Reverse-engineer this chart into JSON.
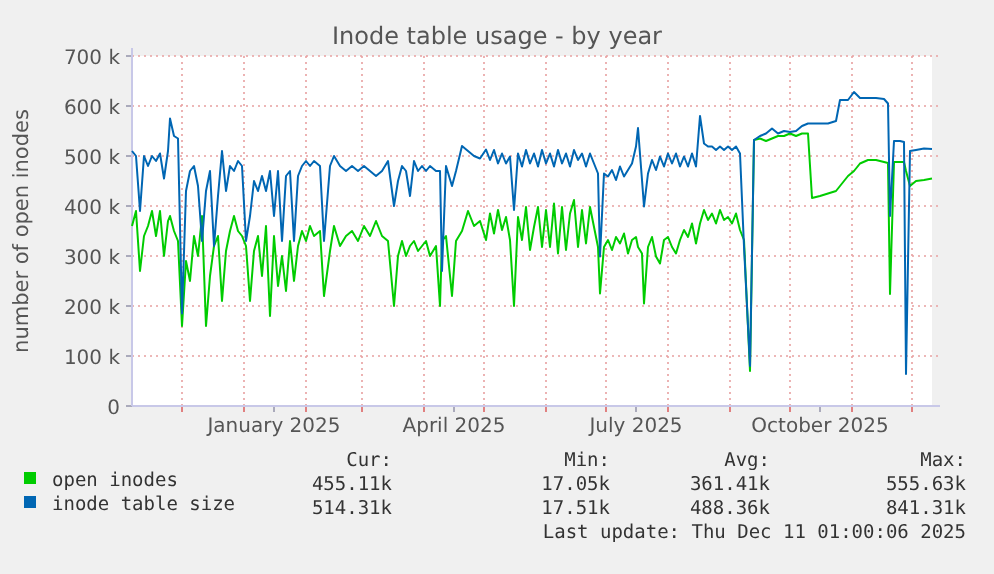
{
  "chart_data": {
    "type": "line",
    "title": "Inode table usage - by year",
    "ylabel": "number of open inodes",
    "x": [
      "2024-11-06",
      "2024-11-08",
      "2024-11-10",
      "2024-11-12",
      "2024-11-14",
      "2024-11-16",
      "2024-11-18",
      "2024-11-20",
      "2024-11-22",
      "2024-11-24",
      "2024-11-25",
      "2024-11-27",
      "2024-11-29",
      "2024-12-01",
      "2024-12-03",
      "2024-12-05",
      "2024-12-07",
      "2024-12-09",
      "2024-12-11",
      "2024-12-13",
      "2024-12-15",
      "2024-12-17",
      "2024-12-19",
      "2024-12-21",
      "2024-12-23",
      "2024-12-25",
      "2024-12-27",
      "2024-12-29",
      "2024-12-31",
      "2025-01-02",
      "2025-01-04",
      "2025-01-06",
      "2025-01-08",
      "2025-01-10",
      "2025-01-12",
      "2025-01-14",
      "2025-01-16",
      "2025-01-18",
      "2025-01-20",
      "2025-01-22",
      "2025-01-24",
      "2025-01-26",
      "2025-01-28",
      "2025-01-30",
      "2025-02-01",
      "2025-02-03",
      "2025-02-05",
      "2025-02-08",
      "2025-02-10",
      "2025-02-13",
      "2025-02-15",
      "2025-02-18",
      "2025-02-21",
      "2025-02-24",
      "2025-02-27",
      "2025-03-02",
      "2025-03-05",
      "2025-03-08",
      "2025-03-11",
      "2025-03-14",
      "2025-03-17",
      "2025-03-19",
      "2025-03-21",
      "2025-03-23",
      "2025-03-25",
      "2025-03-27",
      "2025-03-29",
      "2025-03-31",
      "2025-04-02",
      "2025-04-04",
      "2025-04-07",
      "2025-04-09",
      "2025-04-10",
      "2025-04-12",
      "2025-04-15",
      "2025-04-17",
      "2025-04-20",
      "2025-04-23",
      "2025-04-26",
      "2025-04-29",
      "2025-05-02",
      "2025-05-04",
      "2025-05-06",
      "2025-05-08",
      "2025-05-10",
      "2025-05-12",
      "2025-05-14",
      "2025-05-16",
      "2025-05-18",
      "2025-05-20",
      "2025-05-22",
      "2025-05-24",
      "2025-05-26",
      "2025-05-28",
      "2025-05-30",
      "2025-06-01",
      "2025-06-03",
      "2025-06-05",
      "2025-06-07",
      "2025-06-09",
      "2025-06-11",
      "2025-06-13",
      "2025-06-15",
      "2025-06-17",
      "2025-06-19",
      "2025-06-21",
      "2025-06-23",
      "2025-06-25",
      "2025-06-27",
      "2025-06-28",
      "2025-06-30",
      "2025-07-02",
      "2025-07-04",
      "2025-07-06",
      "2025-07-08",
      "2025-07-10",
      "2025-07-12",
      "2025-07-14",
      "2025-07-16",
      "2025-07-17",
      "2025-07-19",
      "2025-07-20",
      "2025-07-22",
      "2025-07-24",
      "2025-07-26",
      "2025-07-28",
      "2025-07-30",
      "2025-08-01",
      "2025-08-03",
      "2025-08-05",
      "2025-08-07",
      "2025-08-09",
      "2025-08-11",
      "2025-08-13",
      "2025-08-15",
      "2025-08-17",
      "2025-08-19",
      "2025-08-21",
      "2025-08-23",
      "2025-08-25",
      "2025-08-27",
      "2025-08-29",
      "2025-08-31",
      "2025-09-02",
      "2025-09-04",
      "2025-09-06",
      "2025-09-08",
      "2025-09-11",
      "2025-09-13",
      "2025-09-16",
      "2025-09-19",
      "2025-09-22",
      "2025-09-25",
      "2025-09-28",
      "2025-10-01",
      "2025-10-04",
      "2025-10-07",
      "2025-10-10",
      "2025-10-12",
      "2025-10-16",
      "2025-10-20",
      "2025-10-24",
      "2025-10-26",
      "2025-10-30",
      "2025-11-02",
      "2025-11-05",
      "2025-11-09",
      "2025-11-13",
      "2025-11-17",
      "2025-11-19",
      "2025-11-20",
      "2025-11-22",
      "2025-11-25",
      "2025-11-27",
      "2025-11-28",
      "2025-11-30",
      "2025-12-03",
      "2025-12-07",
      "2025-12-11"
    ],
    "series": [
      {
        "name": "open inodes",
        "color": "#00cc00",
        "values": [
          360000,
          390000,
          270000,
          340000,
          360000,
          390000,
          340000,
          390000,
          300000,
          370000,
          380000,
          350000,
          330000,
          160000,
          290000,
          250000,
          340000,
          300000,
          380000,
          160000,
          260000,
          320000,
          340000,
          210000,
          310000,
          350000,
          380000,
          350000,
          340000,
          320000,
          210000,
          310000,
          340000,
          260000,
          360000,
          180000,
          340000,
          240000,
          300000,
          230000,
          330000,
          250000,
          320000,
          350000,
          330000,
          360000,
          340000,
          350000,
          220000,
          310000,
          360000,
          320000,
          340000,
          350000,
          330000,
          360000,
          340000,
          370000,
          340000,
          330000,
          200000,
          300000,
          330000,
          300000,
          320000,
          330000,
          310000,
          320000,
          330000,
          300000,
          320000,
          200000,
          330000,
          340000,
          220000,
          330000,
          350000,
          390000,
          360000,
          370000,
          332000,
          385000,
          345000,
          392000,
          352000,
          378000,
          332000,
          200000,
          378000,
          332000,
          398000,
          312000,
          358000,
          398000,
          318000,
          392000,
          318000,
          405000,
          305000,
          398000,
          312000,
          385000,
          412000,
          318000,
          392000,
          325000,
          398000,
          358000,
          318000,
          225000,
          318000,
          332000,
          312000,
          338000,
          325000,
          345000,
          305000,
          332000,
          338000,
          318000,
          305000,
          205000,
          318000,
          338000,
          299000,
          285000,
          332000,
          338000,
          318000,
          305000,
          332000,
          352000,
          338000,
          365000,
          325000,
          365000,
          392000,
          372000,
          385000,
          365000,
          392000,
          372000,
          378000,
          365000,
          385000,
          352000,
          332000,
          70000,
          532000,
          535000,
          530000,
          535000,
          540000,
          540000,
          545000,
          540000,
          545000,
          545000,
          416000,
          420000,
          425000,
          430000,
          440000,
          460000,
          470000,
          485000,
          492000,
          492000,
          488000,
          486000,
          224000,
          488000,
          488000,
          488000,
          470000,
          440000,
          450000,
          452000,
          455000
        ]
      },
      {
        "name": "inode table size",
        "color": "#0066b3",
        "values": [
          510000,
          500000,
          390000,
          500000,
          480000,
          500000,
          490000,
          505000,
          455000,
          510000,
          575000,
          540000,
          535000,
          185000,
          430000,
          470000,
          480000,
          440000,
          330000,
          430000,
          470000,
          320000,
          420000,
          510000,
          430000,
          480000,
          470000,
          490000,
          480000,
          330000,
          380000,
          450000,
          430000,
          460000,
          430000,
          470000,
          380000,
          470000,
          330000,
          460000,
          470000,
          330000,
          460000,
          480000,
          490000,
          480000,
          490000,
          480000,
          330000,
          480000,
          500000,
          480000,
          470000,
          480000,
          470000,
          480000,
          470000,
          460000,
          470000,
          490000,
          400000,
          450000,
          480000,
          470000,
          420000,
          490000,
          470000,
          480000,
          470000,
          480000,
          470000,
          470000,
          270000,
          480000,
          440000,
          470000,
          520000,
          510000,
          500000,
          495000,
          513000,
          492000,
          512000,
          485000,
          505000,
          485000,
          499000,
          392000,
          505000,
          479000,
          512000,
          485000,
          505000,
          479000,
          512000,
          485000,
          505000,
          479000,
          512000,
          485000,
          505000,
          479000,
          512000,
          492000,
          505000,
          479000,
          505000,
          485000,
          465000,
          299000,
          465000,
          459000,
          472000,
          452000,
          479000,
          459000,
          472000,
          485000,
          519000,
          556000,
          452000,
          399000,
          465000,
          492000,
          472000,
          499000,
          479000,
          505000,
          485000,
          505000,
          479000,
          499000,
          479000,
          505000,
          479000,
          580000,
          525000,
          519000,
          519000,
          512000,
          519000,
          512000,
          519000,
          512000,
          519000,
          505000,
          319000,
          80000,
          532000,
          540000,
          545000,
          555000,
          545000,
          550000,
          548000,
          550000,
          560000,
          565000,
          565000,
          565000,
          565000,
          570000,
          612000,
          612000,
          628000,
          616000,
          616000,
          616000,
          614000,
          605000,
          380000,
          530000,
          530000,
          528000,
          64000,
          510000,
          512000,
          515000,
          514000
        ]
      }
    ],
    "xlim": [
      "2024-11-06",
      "2025-12-11"
    ],
    "xticks": [
      {
        "value": "2024-12-01",
        "label": null
      },
      {
        "value": "2025-01-01",
        "label": null
      },
      {
        "value": "2025-01-16",
        "label": "January 2025"
      },
      {
        "value": "2025-02-01",
        "label": null
      },
      {
        "value": "2025-03-01",
        "label": null
      },
      {
        "value": "2025-04-01",
        "label": null
      },
      {
        "value": "2025-04-16",
        "label": "April 2025"
      },
      {
        "value": "2025-05-01",
        "label": null
      },
      {
        "value": "2025-06-01",
        "label": null
      },
      {
        "value": "2025-07-01",
        "label": null
      },
      {
        "value": "2025-07-16",
        "label": "July 2025"
      },
      {
        "value": "2025-08-01",
        "label": null
      },
      {
        "value": "2025-09-01",
        "label": null
      },
      {
        "value": "2025-10-01",
        "label": null
      },
      {
        "value": "2025-10-16",
        "label": "October 2025"
      },
      {
        "value": "2025-11-01",
        "label": null
      },
      {
        "value": "2025-12-01",
        "label": null
      }
    ],
    "ylim": [
      0,
      700000
    ],
    "yticks": [
      {
        "value": 0,
        "label": "0"
      },
      {
        "value": 100000,
        "label": "100 k"
      },
      {
        "value": 200000,
        "label": "200 k"
      },
      {
        "value": 300000,
        "label": "300 k"
      },
      {
        "value": 400000,
        "label": "400 k"
      },
      {
        "value": 500000,
        "label": "500 k"
      },
      {
        "value": 600000,
        "label": "600 k"
      },
      {
        "value": 700000,
        "label": "700 k"
      }
    ],
    "grid": true,
    "legend": "bottom",
    "annotations": [
      "Cur:",
      "Min:",
      "Avg:",
      "Max:",
      "455.11k",
      "17.05k",
      "361.41k",
      "555.63k",
      "514.31k",
      "17.51k",
      "488.36k",
      "841.31k",
      "Last update: Thu Dec 11 01:00:06 2025"
    ]
  }
}
